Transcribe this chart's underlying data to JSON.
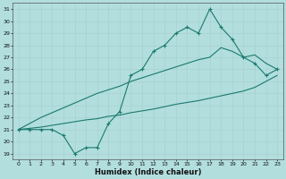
{
  "x": [
    0,
    1,
    2,
    3,
    4,
    5,
    6,
    7,
    8,
    9,
    10,
    11,
    12,
    13,
    14,
    15,
    16,
    17,
    18,
    19,
    20,
    21,
    22,
    23
  ],
  "y_main": [
    21,
    21,
    21,
    21,
    20.5,
    19,
    19.5,
    19.5,
    21.5,
    22.5,
    25.5,
    26,
    27.5,
    28,
    29,
    29.5,
    29,
    31,
    29.5,
    28.5,
    27,
    26.5,
    25.5,
    26
  ],
  "y_upper": [
    21,
    21.5,
    22.0,
    22.4,
    22.8,
    23.2,
    23.6,
    24.0,
    24.3,
    24.6,
    25.0,
    25.3,
    25.6,
    25.9,
    26.2,
    26.5,
    26.8,
    27.0,
    27.8,
    27.5,
    27.0,
    27.2,
    26.5,
    26.0
  ],
  "y_lower": [
    21,
    21.1,
    21.2,
    21.35,
    21.5,
    21.65,
    21.8,
    21.9,
    22.1,
    22.2,
    22.4,
    22.55,
    22.7,
    22.9,
    23.1,
    23.25,
    23.4,
    23.6,
    23.8,
    24.0,
    24.2,
    24.5,
    25.0,
    25.5
  ],
  "bg_color": "#b2dede",
  "grid_color": "#c8e8e8",
  "line_color": "#1a7a6e",
  "xlabel": "Humidex (Indice chaleur)",
  "ylabel_ticks": [
    19,
    20,
    21,
    22,
    23,
    24,
    25,
    26,
    27,
    28,
    29,
    30,
    31
  ],
  "xlim": [
    -0.5,
    23.5
  ],
  "ylim": [
    18.5,
    31.5
  ],
  "xticks": [
    0,
    1,
    2,
    3,
    4,
    5,
    6,
    7,
    8,
    9,
    10,
    11,
    12,
    13,
    14,
    15,
    16,
    17,
    18,
    19,
    20,
    21,
    22,
    23
  ],
  "tick_fontsize": 4.5,
  "xlabel_fontsize": 6.0,
  "line_width": 0.8,
  "marker_size": 2.0
}
